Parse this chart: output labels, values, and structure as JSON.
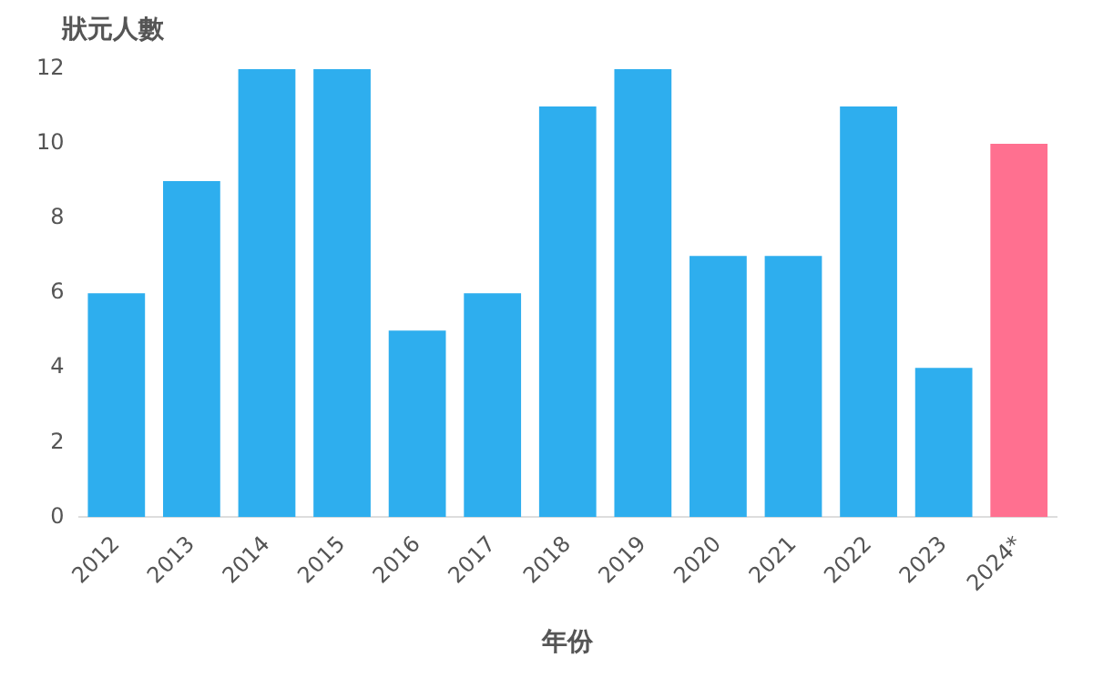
{
  "chart_data": {
    "type": "bar",
    "ylabel": "狀元人數",
    "xlabel": "年份",
    "categories": [
      "2012",
      "2013",
      "2014",
      "2015",
      "2016",
      "2017",
      "2018",
      "2019",
      "2020",
      "2021",
      "2022",
      "2023",
      "2024*"
    ],
    "values": [
      6,
      9,
      12,
      12,
      5,
      6,
      11,
      12,
      7,
      7,
      11,
      4,
      10
    ],
    "colors": [
      "#2eaeee",
      "#2eaeee",
      "#2eaeee",
      "#2eaeee",
      "#2eaeee",
      "#2eaeee",
      "#2eaeee",
      "#2eaeee",
      "#2eaeee",
      "#2eaeee",
      "#2eaeee",
      "#2eaeee",
      "#ff7090"
    ],
    "ylim": [
      0,
      12
    ],
    "yticks": [
      0,
      2,
      4,
      6,
      8,
      10,
      12
    ],
    "grid": false,
    "legend": false
  }
}
